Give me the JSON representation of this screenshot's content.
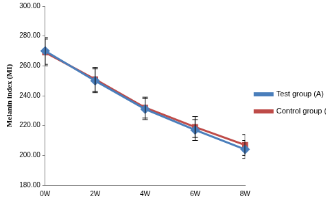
{
  "chart_data": {
    "type": "line",
    "y_label": "Melanin index (MI)",
    "categories": [
      "0W",
      "2W",
      "4W",
      "6W",
      "8W"
    ],
    "series": [
      {
        "name": "Test group (A)",
        "color": "#4a7ebb",
        "marker": "diamond",
        "values": [
          270,
          250,
          231,
          217,
          204
        ],
        "errors": [
          9,
          8,
          7,
          7,
          6
        ]
      },
      {
        "name": "Control group (B)",
        "color": "#be4b48",
        "marker": "square",
        "values": [
          269,
          251,
          232,
          219,
          207
        ],
        "errors": [
          9,
          8,
          7,
          7,
          7
        ]
      }
    ],
    "ylim": [
      180,
      300
    ],
    "yticks": [
      {
        "value": 180,
        "label": "180.00"
      },
      {
        "value": 200,
        "label": "200.00"
      },
      {
        "value": 220,
        "label": "220.00"
      },
      {
        "value": 240,
        "label": "240.00"
      },
      {
        "value": 260,
        "label": "260.00"
      },
      {
        "value": 280,
        "label": "280.00"
      },
      {
        "value": 300,
        "label": "300.00"
      }
    ],
    "grid": false,
    "legend": "right"
  }
}
